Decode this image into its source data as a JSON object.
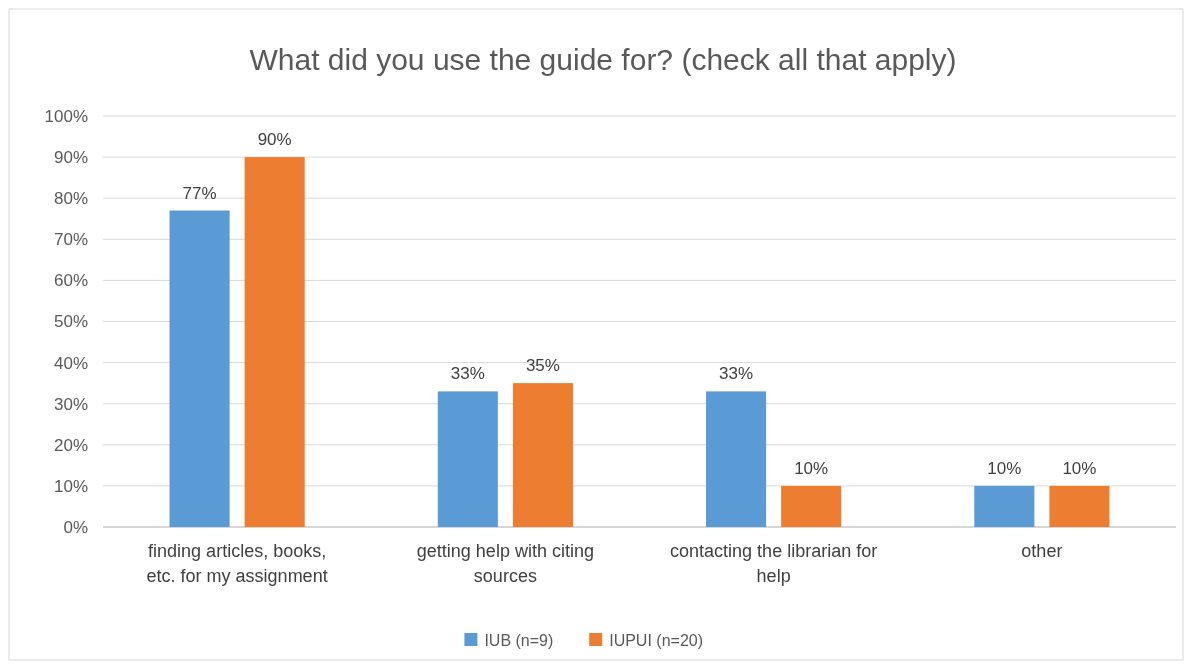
{
  "chart_data": {
    "type": "bar",
    "title": "What did you use the guide for? (check all that apply)",
    "categories": [
      "finding articles, books, etc. for my assignment",
      "getting help with citing sources",
      "contacting the librarian for help",
      "other"
    ],
    "series": [
      {
        "name": "IUB (n=9)",
        "color": "#5b9bd5",
        "values": [
          77,
          33,
          33,
          10
        ],
        "value_labels": [
          "77%",
          "33%",
          "33%",
          "10%"
        ]
      },
      {
        "name": "IUPUI (n=20)",
        "color": "#ed7d31",
        "values": [
          90,
          35,
          10,
          10
        ],
        "value_labels": [
          "90%",
          "35%",
          "10%",
          "10%"
        ]
      }
    ],
    "ylim": [
      0,
      100
    ],
    "yticks": [
      {
        "value": 0,
        "label": "0%"
      },
      {
        "value": 10,
        "label": "10%"
      },
      {
        "value": 20,
        "label": "20%"
      },
      {
        "value": 30,
        "label": "30%"
      },
      {
        "value": 40,
        "label": "40%"
      },
      {
        "value": 50,
        "label": "50%"
      },
      {
        "value": 60,
        "label": "60%"
      },
      {
        "value": 70,
        "label": "70%"
      },
      {
        "value": 80,
        "label": "80%"
      },
      {
        "value": 90,
        "label": "90%"
      },
      {
        "value": 100,
        "label": "100%"
      }
    ],
    "grid": "y",
    "legend": "bottom"
  }
}
